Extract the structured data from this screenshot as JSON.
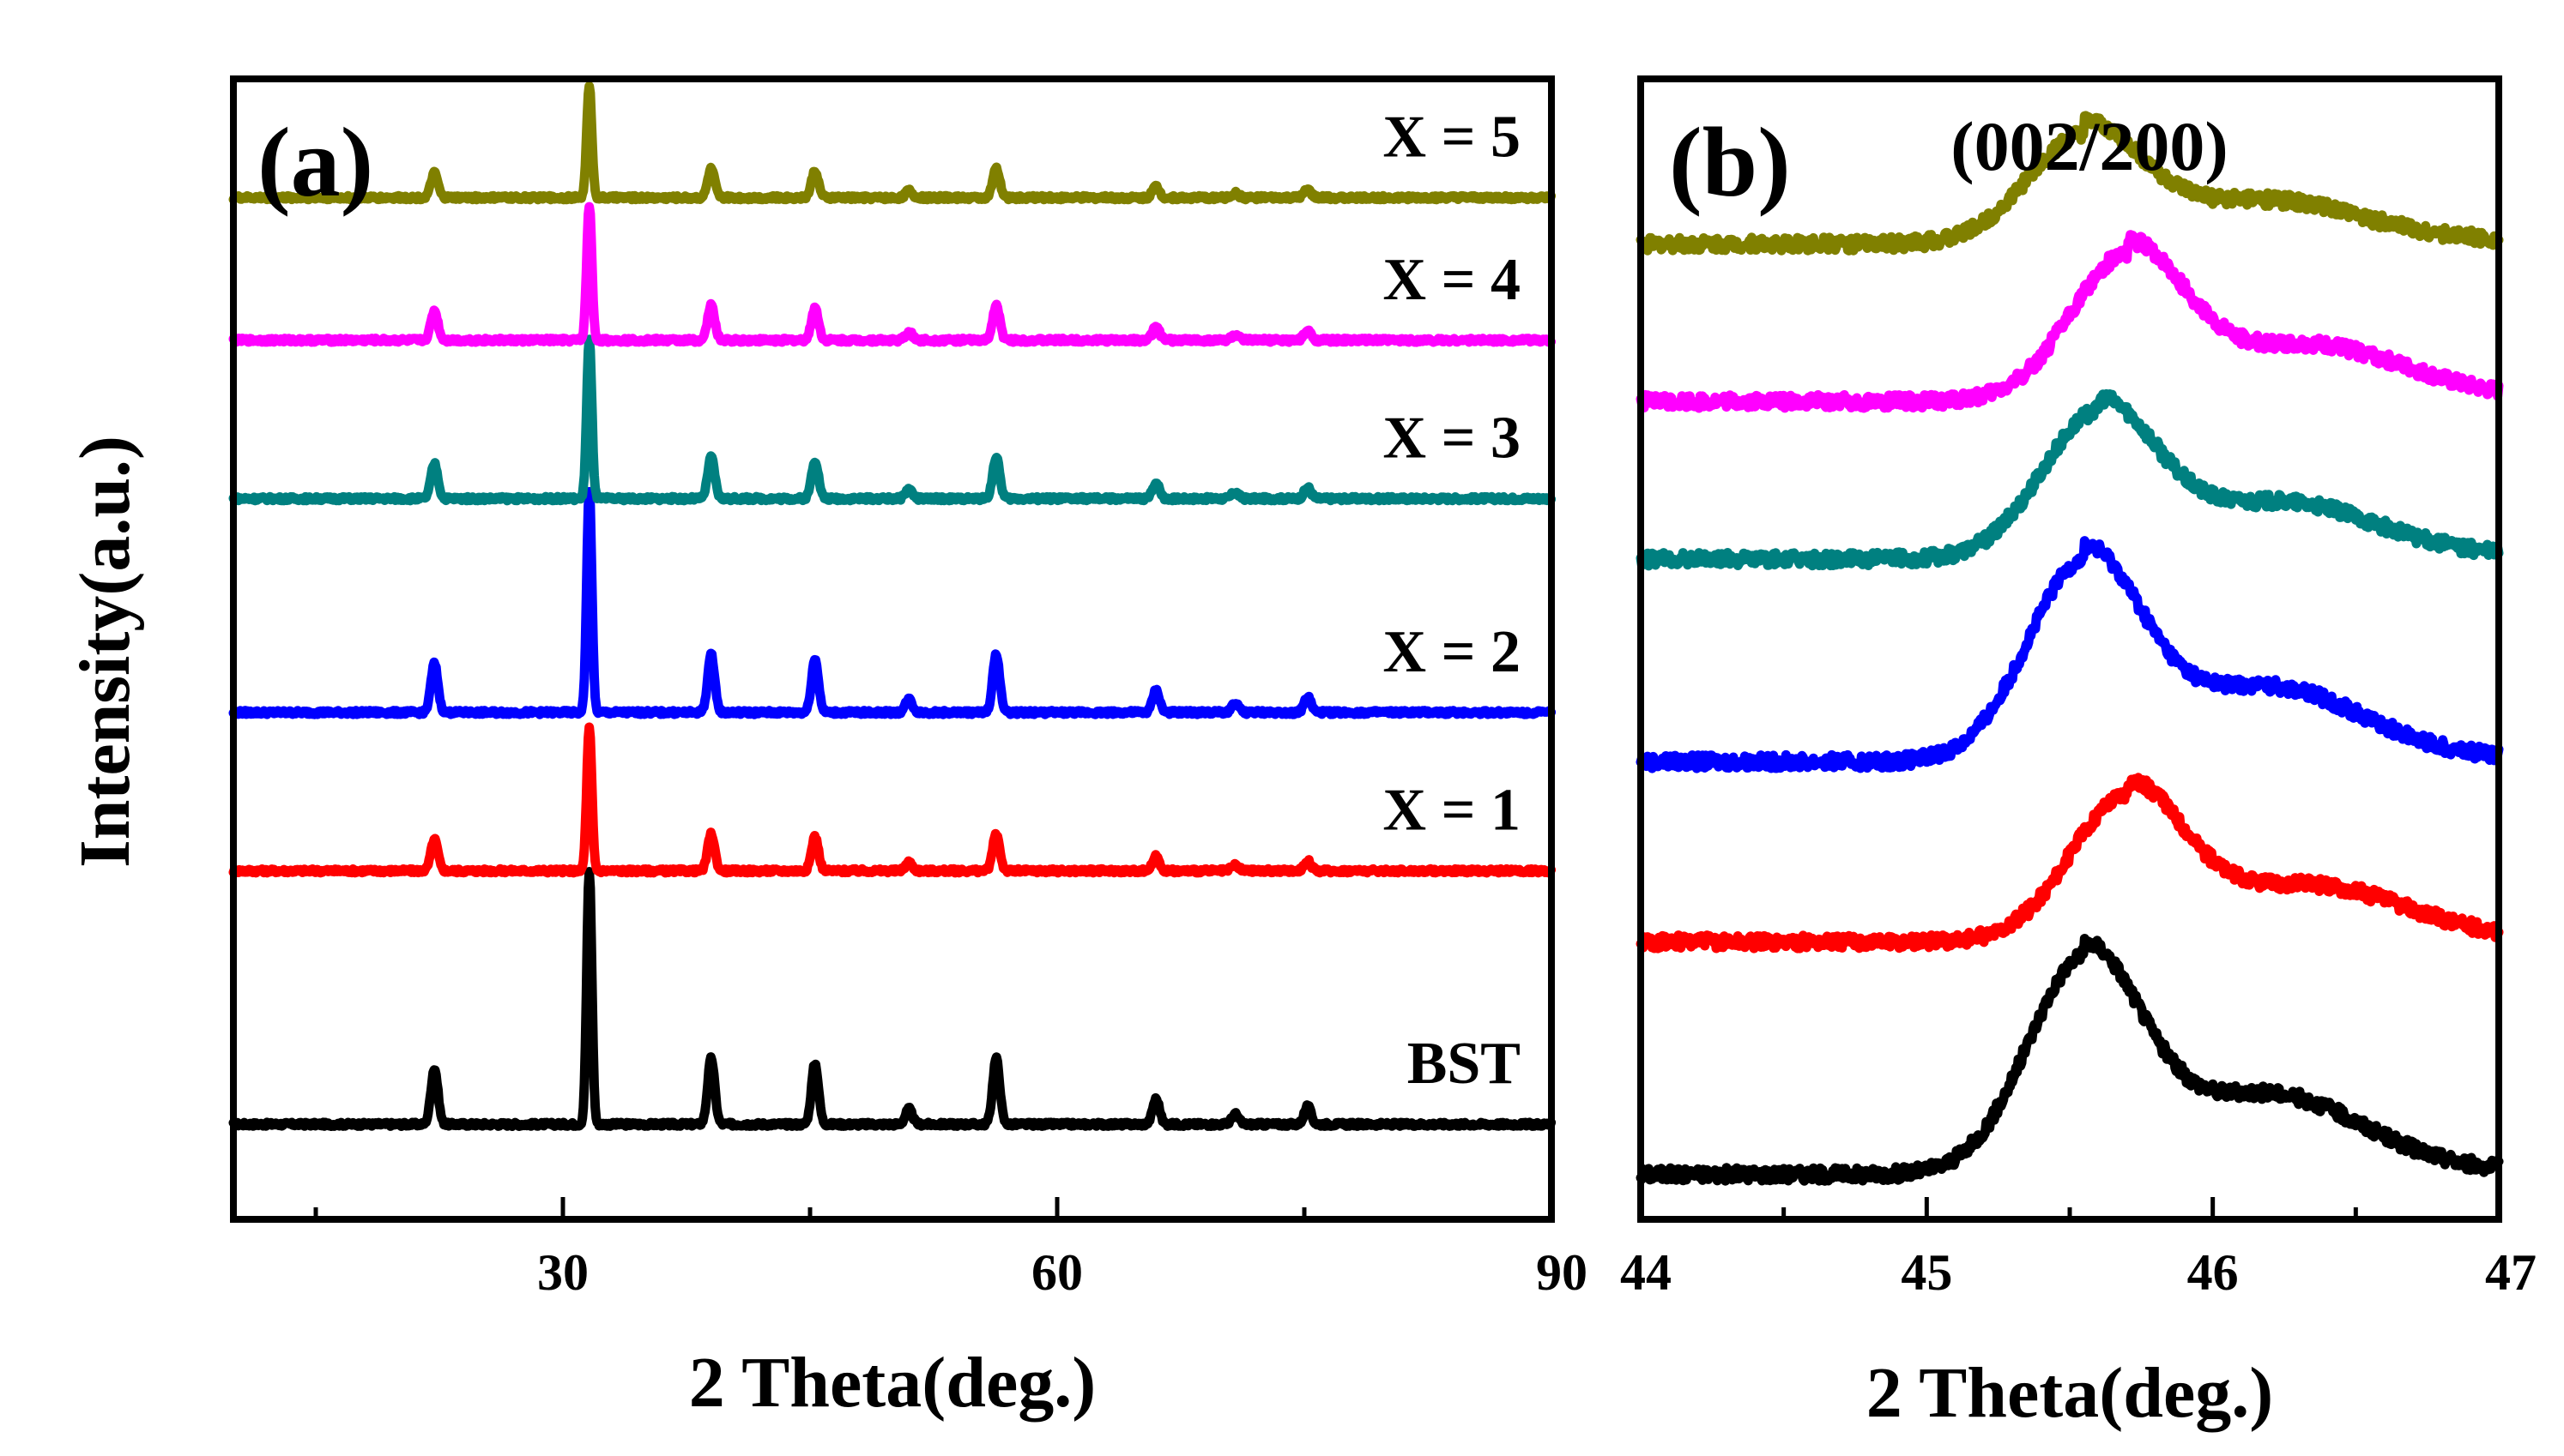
{
  "chart_data": [
    {
      "panel": "a",
      "type": "line",
      "panel_label": "(a)",
      "xlabel": "2 Theta(deg.)",
      "ylabel": "Intensity(a.u.)",
      "xlim": [
        10,
        90
      ],
      "xticks": [
        30,
        60,
        90
      ],
      "ylim": [
        -0.6,
        6.6
      ],
      "grid": false,
      "peaks_2theta": [
        22.2,
        31.6,
        39.0,
        45.3,
        51.0,
        56.3,
        66.0,
        70.8,
        75.2
      ],
      "peak_heights": [
        0.22,
        1.0,
        0.26,
        0.24,
        0.06,
        0.26,
        0.1,
        0.04,
        0.07
      ],
      "series": [
        {
          "name": "BST",
          "color": "#000000",
          "offset": 0.0,
          "scale": 1.6
        },
        {
          "name": "X = 1",
          "color": "#ff0000",
          "offset": 1.6,
          "scale": 0.9
        },
        {
          "name": "X = 2",
          "color": "#0000ff",
          "offset": 2.6,
          "scale": 1.4
        },
        {
          "name": "X = 3",
          "color": "#008080",
          "offset": 3.95,
          "scale": 1.0
        },
        {
          "name": "X = 4",
          "color": "#ff00ff",
          "offset": 4.95,
          "scale": 0.85
        },
        {
          "name": "X = 5",
          "color": "#808000",
          "offset": 5.85,
          "scale": 0.7
        }
      ]
    },
    {
      "panel": "b",
      "type": "line",
      "panel_label": "(b)",
      "title": "(002/200)",
      "xlabel": "2 Theta(deg.)",
      "xlim": [
        44,
        47
      ],
      "xticks": [
        44,
        45,
        46,
        47
      ],
      "ylim": [
        -0.3,
        7.3
      ],
      "grid": false,
      "series": [
        {
          "name": "BST",
          "color": "#000000",
          "offset": 0.0,
          "peak_center": 45.55,
          "peak_height": 1.4
        },
        {
          "name": "X = 1",
          "color": "#ff0000",
          "offset": 1.55,
          "peak_center": 45.7,
          "peak_height": 0.95
        },
        {
          "name": "X = 2",
          "color": "#0000ff",
          "offset": 2.75,
          "peak_center": 45.55,
          "peak_height": 1.3
        },
        {
          "name": "X = 3",
          "color": "#008080",
          "offset": 4.1,
          "peak_center": 45.6,
          "peak_height": 0.95
        },
        {
          "name": "X = 4",
          "color": "#ff00ff",
          "offset": 5.15,
          "peak_center": 45.7,
          "peak_height": 0.95
        },
        {
          "name": "X = 5",
          "color": "#808000",
          "offset": 6.2,
          "peak_center": 45.55,
          "peak_height": 0.7
        }
      ]
    }
  ]
}
